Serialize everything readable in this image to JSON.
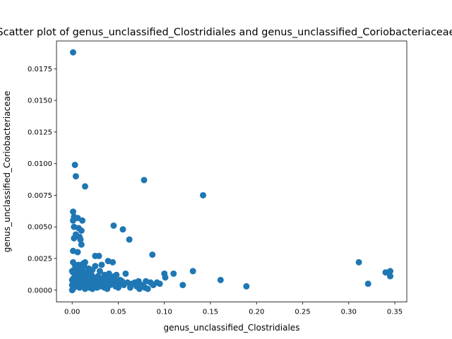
{
  "chart_data": {
    "type": "scatter",
    "title": "Scatter plot of genus_unclassified_Clostridiales and genus_unclassified_Coriobacteriaceae",
    "xlabel": "genus_unclassified_Clostridiales",
    "ylabel": "genus_unclassified_Coriobacteriaceae",
    "xlim": [
      -0.017,
      0.363
    ],
    "ylim": [
      -0.00094,
      0.0197
    ],
    "x_ticks": [
      0.0,
      0.05,
      0.1,
      0.15,
      0.2,
      0.25,
      0.3,
      0.35
    ],
    "x_tick_labels": [
      "0.00",
      "0.05",
      "0.10",
      "0.15",
      "0.20",
      "0.25",
      "0.30",
      "0.35"
    ],
    "y_ticks": [
      0.0,
      0.0025,
      0.005,
      0.0075,
      0.01,
      0.0125,
      0.015,
      0.0175
    ],
    "y_tick_labels": [
      "0.0000",
      "0.0025",
      "0.0050",
      "0.0075",
      "0.0100",
      "0.0125",
      "0.0150",
      "0.0175"
    ],
    "grid": false,
    "marker_color": "#1f77b4",
    "points": [
      [
        0.001,
        0.0188
      ],
      [
        0.003,
        0.0099
      ],
      [
        0.004,
        0.009
      ],
      [
        0.014,
        0.0082
      ],
      [
        0.078,
        0.0087
      ],
      [
        0.142,
        0.0075
      ],
      [
        0.001,
        0.0062
      ],
      [
        0.002,
        0.0058
      ],
      [
        0.006,
        0.0057
      ],
      [
        0.001,
        0.0055
      ],
      [
        0.011,
        0.0055
      ],
      [
        0.002,
        0.005
      ],
      [
        0.007,
        0.0049
      ],
      [
        0.01,
        0.0047
      ],
      [
        0.004,
        0.0044
      ],
      [
        0.008,
        0.0042
      ],
      [
        0.002,
        0.0041
      ],
      [
        0.009,
        0.004
      ],
      [
        0.01,
        0.0036
      ],
      [
        0.045,
        0.0051
      ],
      [
        0.055,
        0.0048
      ],
      [
        0.062,
        0.004
      ],
      [
        0.001,
        0.0031
      ],
      [
        0.006,
        0.003
      ],
      [
        0.087,
        0.0028
      ],
      [
        0.025,
        0.0027
      ],
      [
        0.029,
        0.0027
      ],
      [
        0.039,
        0.0023
      ],
      [
        0.044,
        0.0022
      ],
      [
        0.032,
        0.002
      ],
      [
        0.001,
        0.0022
      ],
      [
        0.003,
        0.002
      ],
      [
        0.005,
        0.0019
      ],
      [
        0.008,
        0.0018
      ],
      [
        0.012,
        0.0021
      ],
      [
        0.014,
        0.0022
      ],
      [
        0.018,
        0.0017
      ],
      [
        0.022,
        0.0016
      ],
      [
        0.025,
        0.0019
      ],
      [
        0.03,
        0.0015
      ],
      [
        0.035,
        0.0012
      ],
      [
        0.037,
        0.001
      ],
      [
        0.04,
        0.0013
      ],
      [
        0.042,
        0.0009
      ],
      [
        0.046,
        0.0011
      ],
      [
        0.048,
        0.0012
      ],
      [
        0.052,
        0.0008
      ],
      [
        0.058,
        0.0013
      ],
      [
        0.06,
        0.0006
      ],
      [
        0.065,
        0.0005
      ],
      [
        0.068,
        0.0006
      ],
      [
        0.072,
        0.0007
      ],
      [
        0.076,
        0.0004
      ],
      [
        0.079,
        0.0002
      ],
      [
        0.08,
        0.0007
      ],
      [
        0.082,
        0.0001
      ],
      [
        0.085,
        0.0006
      ],
      [
        0.092,
        0.0006
      ],
      [
        0.1,
        0.0013
      ],
      [
        0.101,
        0.001
      ],
      [
        0.11,
        0.0013
      ],
      [
        0.12,
        0.0004
      ],
      [
        0.131,
        0.0015
      ],
      [
        0.161,
        0.0008
      ],
      [
        0.189,
        0.0003
      ],
      [
        0.311,
        0.0022
      ],
      [
        0.321,
        0.0005
      ],
      [
        0.34,
        0.0014
      ],
      [
        0.345,
        0.0015
      ],
      [
        0.345,
        0.0011
      ],
      [
        0.0,
        0.0
      ],
      [
        0.001,
        0.0001
      ],
      [
        0.002,
        0.0003
      ],
      [
        0.003,
        0.0005
      ],
      [
        0.004,
        0.0007
      ],
      [
        0.005,
        0.0009
      ],
      [
        0.006,
        0.0011
      ],
      [
        0.007,
        0.0013
      ],
      [
        0.008,
        0.0002
      ],
      [
        0.009,
        0.0004
      ],
      [
        0.01,
        0.0006
      ],
      [
        0.011,
        0.0008
      ],
      [
        0.012,
        0.001
      ],
      [
        0.013,
        0.0012
      ],
      [
        0.014,
        0.0001
      ],
      [
        0.015,
        0.0003
      ],
      [
        0.016,
        0.0005
      ],
      [
        0.017,
        0.0007
      ],
      [
        0.018,
        0.0009
      ],
      [
        0.019,
        0.0002
      ],
      [
        0.02,
        0.0004
      ],
      [
        0.021,
        0.0006
      ],
      [
        0.022,
        0.0001
      ],
      [
        0.023,
        0.0003
      ],
      [
        0.024,
        0.0008
      ],
      [
        0.026,
        0.0005
      ],
      [
        0.027,
        0.0002
      ],
      [
        0.028,
        0.0006
      ],
      [
        0.029,
        0.0004
      ],
      [
        0.031,
        0.0003
      ],
      [
        0.033,
        0.0007
      ],
      [
        0.035,
        0.0002
      ],
      [
        0.036,
        0.0005
      ],
      [
        0.038,
        0.0001
      ],
      [
        0.041,
        0.0004
      ],
      [
        0.044,
        0.0006
      ],
      [
        0.047,
        0.0003
      ],
      [
        0.05,
        0.0002
      ],
      [
        0.053,
        0.0005
      ],
      [
        0.056,
        0.0004
      ],
      [
        0.063,
        0.0002
      ],
      [
        0.07,
        0.0003
      ],
      [
        0.073,
        0.0001
      ],
      [
        0.088,
        0.0004
      ],
      [
        0.095,
        0.0005
      ],
      [
        0.001,
        0.0014
      ],
      [
        0.002,
        0.0016
      ],
      [
        0.003,
        0.0012
      ],
      [
        0.004,
        0.0018
      ],
      [
        0.006,
        0.0015
      ],
      [
        0.007,
        0.002
      ],
      [
        0.009,
        0.0017
      ],
      [
        0.011,
        0.0015
      ],
      [
        0.013,
        0.0019
      ],
      [
        0.015,
        0.0014
      ],
      [
        0.016,
        0.0011
      ],
      [
        0.019,
        0.0013
      ],
      [
        0.02,
        0.001
      ],
      [
        0.021,
        0.0012
      ],
      [
        0.023,
        0.001
      ],
      [
        0.026,
        0.0009
      ],
      [
        0.028,
        0.0011
      ],
      [
        0.03,
        0.0008
      ],
      [
        0.032,
        0.0009
      ],
      [
        0.034,
        0.0006
      ],
      [
        0.039,
        0.0007
      ],
      [
        0.043,
        0.0008
      ],
      [
        0.049,
        0.0007
      ],
      [
        0.054,
        0.0007
      ],
      [
        0.0,
        0.0008
      ],
      [
        0.0,
        0.0015
      ],
      [
        0.0,
        0.0004
      ],
      [
        0.001,
        0.0009
      ],
      [
        0.002,
        0.0007
      ],
      [
        0.005,
        0.0003
      ],
      [
        0.008,
        0.0006
      ]
    ]
  }
}
